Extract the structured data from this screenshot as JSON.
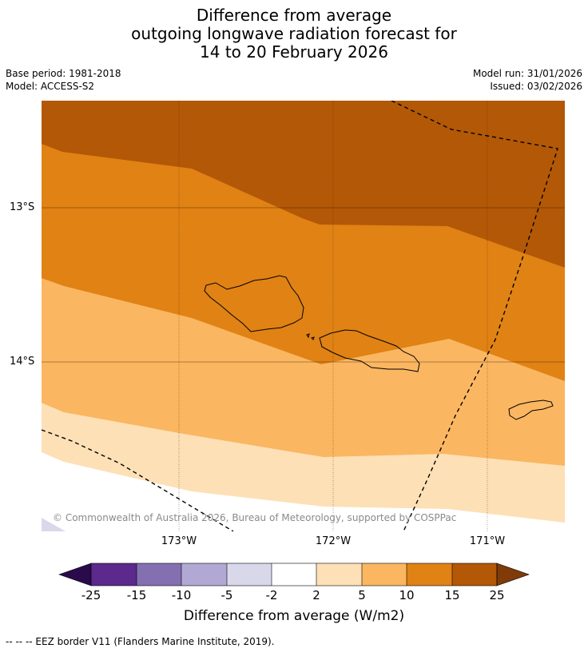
{
  "title": {
    "line1": "Difference from average",
    "line2": "outgoing longwave radiation forecast for",
    "line3": "14 to 20 February 2026"
  },
  "meta": {
    "base_period": "Base period: 1981-2018",
    "model": "Model: ACCESS-S2",
    "model_run": "Model run: 31/01/2026",
    "issued": "Issued: 03/02/2026"
  },
  "map": {
    "lat_labels": [
      "13°S",
      "14°S"
    ],
    "lon_labels": [
      "173°W",
      "172°W",
      "171°W"
    ],
    "copyright": "© Commonwealth of Australia 2026, Bureau of Meteorology, supported by COSPPac"
  },
  "colorbar": {
    "ticks": [
      "-25",
      "-15",
      "-10",
      "-5",
      "-2",
      "2",
      "5",
      "10",
      "15",
      "25"
    ],
    "colors": [
      "#2a0a4a",
      "#5b2a8c",
      "#8470b0",
      "#b2a8d4",
      "#d9d8eb",
      "#ffffff",
      "#fde0b6",
      "#fbb661",
      "#e08214",
      "#b35806",
      "#7f3b08"
    ],
    "label": "Difference from average (W/m2)"
  },
  "footnote": "--  --  -- EEZ border V11 (Flanders Marine Institute, 2019)."
}
